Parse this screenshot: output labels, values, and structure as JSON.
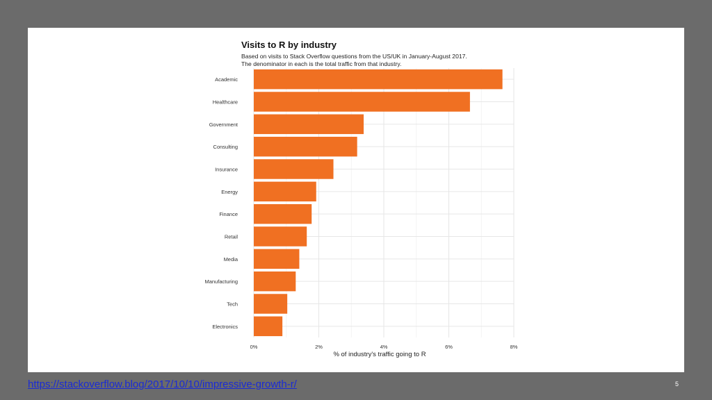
{
  "slide": {
    "source_link": "https://stackoverflow.blog/2017/10/10/impressive-growth-r/",
    "page_number": "5"
  },
  "colors": {
    "bar": "#f07022",
    "grid": "#e6e6e6",
    "background": "#6b6b6b"
  },
  "chart_data": {
    "type": "bar",
    "orientation": "horizontal",
    "title": "Visits to R by industry",
    "subtitle": "Based on visits to Stack Overflow questions from the US/UK in January-August 2017.",
    "subtitle2": "The denominator in each is the total traffic from that industry.",
    "xlabel": "% of industry's traffic going to R",
    "ylabel": "",
    "categories": [
      "Academic",
      "Healthcare",
      "Government",
      "Consulting",
      "Insurance",
      "Energy",
      "Finance",
      "Retail",
      "Media",
      "Manufacturing",
      "Tech",
      "Electronics"
    ],
    "values": [
      7.65,
      6.65,
      3.38,
      3.18,
      2.45,
      1.92,
      1.78,
      1.63,
      1.4,
      1.29,
      1.03,
      0.88
    ],
    "xlim": [
      0,
      8
    ],
    "xticks": [
      0,
      2,
      4,
      6,
      8
    ],
    "xtick_labels": [
      "0%",
      "2%",
      "4%",
      "6%",
      "8%"
    ],
    "grid": true,
    "legend": "none"
  }
}
